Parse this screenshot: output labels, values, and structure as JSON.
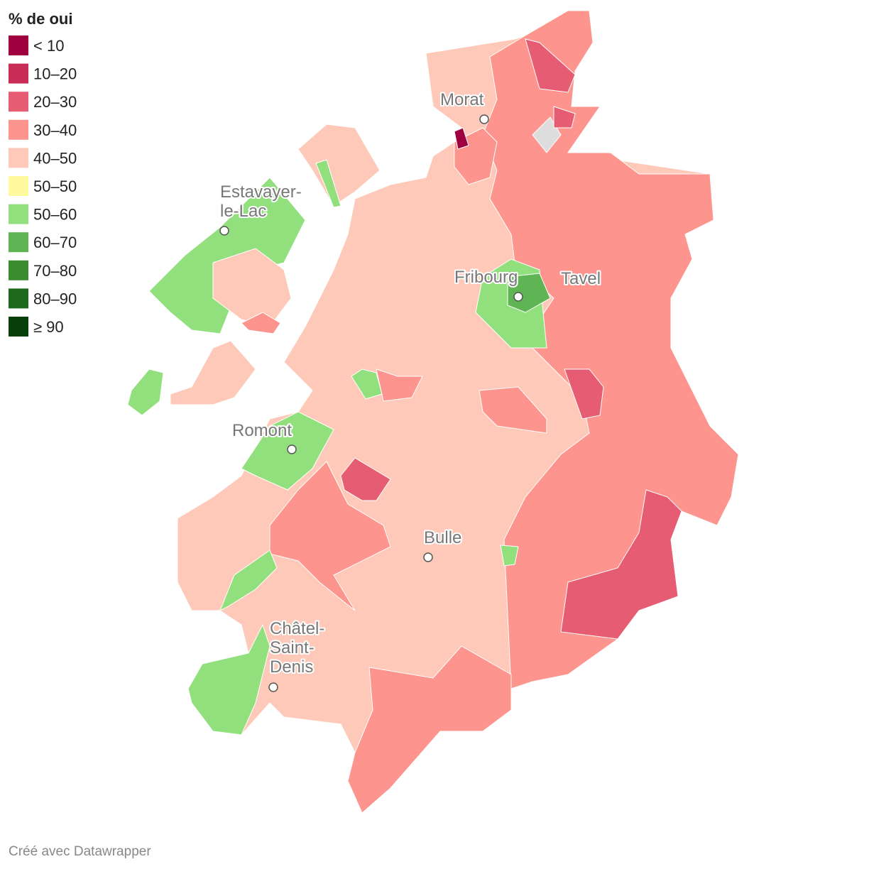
{
  "legend": {
    "title": "% de oui",
    "items": [
      {
        "label": "< 10",
        "color": "#9e0040"
      },
      {
        "label": "10–20",
        "color": "#c92d55"
      },
      {
        "label": "20–30",
        "color": "#e65c72"
      },
      {
        "label": "30–40",
        "color": "#fe948e"
      },
      {
        "label": "40–50",
        "color": "#fec9b8"
      },
      {
        "label": "50–50",
        "color": "#fff99e"
      },
      {
        "label": "50–60",
        "color": "#92e07d"
      },
      {
        "label": "60–70",
        "color": "#5fb453"
      },
      {
        "label": "70–80",
        "color": "#3a8c2f"
      },
      {
        "label": "80–90",
        "color": "#1e6a1c"
      },
      {
        "label": "≥ 90",
        "color": "#083f0a"
      }
    ]
  },
  "cities": [
    {
      "name": [
        "Morat"
      ]
    },
    {
      "name": [
        "Estavayer-",
        "le-Lac"
      ]
    },
    {
      "name": [
        "Fribourg"
      ]
    },
    {
      "name": [
        "Tavel"
      ]
    },
    {
      "name": [
        "Romont"
      ]
    },
    {
      "name": [
        "Bulle"
      ]
    },
    {
      "name": [
        "Châtel-",
        "Saint-",
        "Denis"
      ]
    }
  ],
  "footer": "Créé avec Datawrapper"
}
